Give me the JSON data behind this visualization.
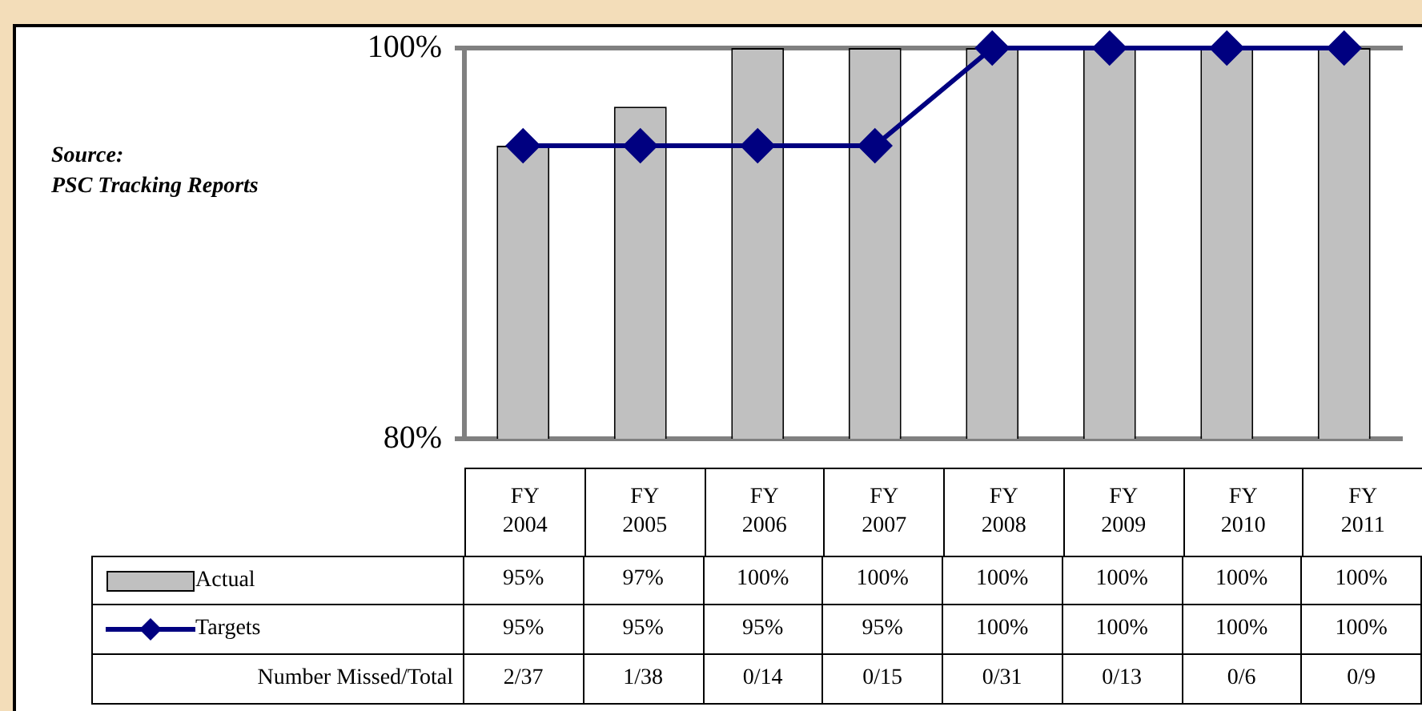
{
  "chart_data": {
    "type": "bar",
    "categories": [
      "FY 2004",
      "FY 2005",
      "FY 2006",
      "FY 2007",
      "FY 2008",
      "FY 2009",
      "FY 2010",
      "FY 2011"
    ],
    "series": [
      {
        "name": "Actual",
        "color": "#c0c0c0",
        "values": [
          95,
          97,
          100,
          100,
          100,
          100,
          100,
          100
        ],
        "value_labels": [
          "95%",
          "97%",
          "100%",
          "100%",
          "100%",
          "100%",
          "100%",
          "100%"
        ]
      },
      {
        "name": "Targets",
        "type": "line",
        "color": "#000080",
        "values": [
          95,
          95,
          95,
          95,
          100,
          100,
          100,
          100
        ],
        "value_labels": [
          "95%",
          "95%",
          "95%",
          "95%",
          "100%",
          "100%",
          "100%",
          "100%"
        ]
      }
    ],
    "ylim": [
      80,
      100
    ],
    "yticks": [
      {
        "value": 80,
        "label": "80%"
      },
      {
        "value": 100,
        "label": "100%"
      }
    ],
    "grid": "y",
    "legend": "bottom",
    "marker": "diamond",
    "line_style": "solid",
    "annotations": [
      "Source:\nPSC Tracking Reports",
      "Number Missed/Total",
      "2/37",
      "1/38",
      "0/14",
      "0/15",
      "0/31",
      "0/13",
      "0/6",
      "0/9"
    ]
  }
}
